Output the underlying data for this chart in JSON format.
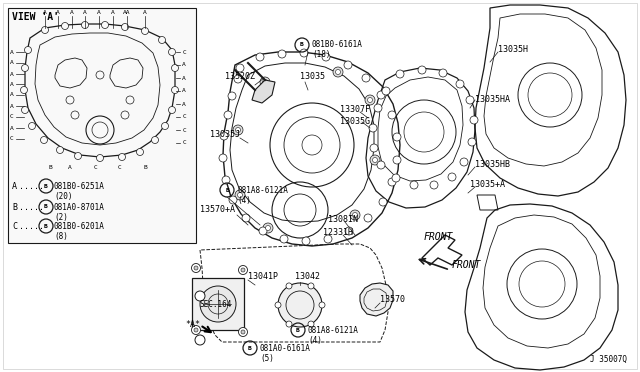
{
  "bg_color": "#ffffff",
  "line_color": "#1a1a1a",
  "text_color": "#000000",
  "diagram_id": "J 35007Q",
  "view_label": "VIEW 'A'",
  "sec_label": "SEC.164",
  "front_label": "FRONT",
  "fig_width": 6.4,
  "fig_height": 3.72,
  "dpi": 100
}
